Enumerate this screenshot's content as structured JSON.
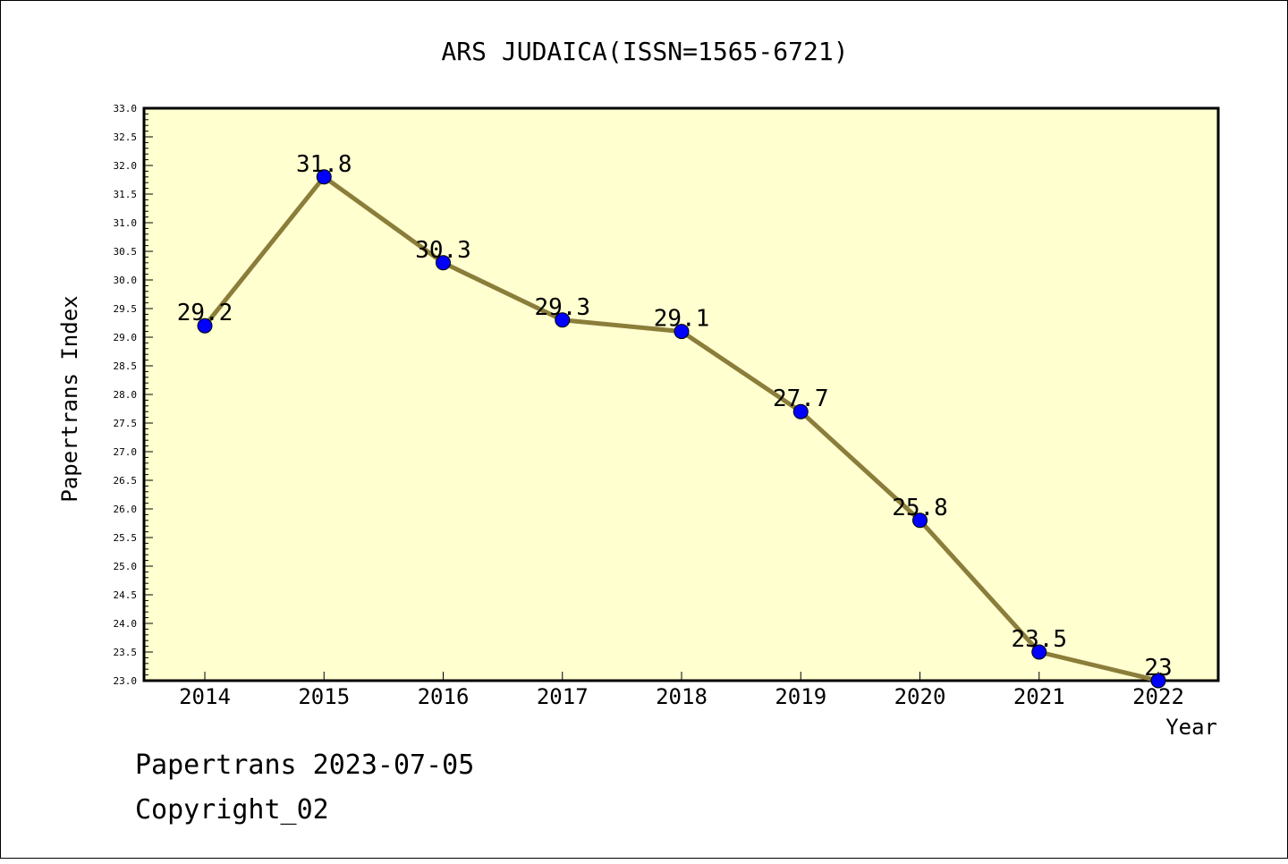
{
  "chart_data": {
    "type": "line",
    "title": "ARS JUDAICA(ISSN=1565-6721)",
    "xlabel": "Year",
    "ylabel": "Papertrans Index",
    "categories": [
      "2014",
      "2015",
      "2016",
      "2017",
      "2018",
      "2019",
      "2020",
      "2021",
      "2022"
    ],
    "values": [
      29.2,
      31.8,
      30.3,
      29.3,
      29.1,
      27.7,
      25.8,
      23.5,
      23
    ],
    "data_labels": [
      "29.2",
      "31.8",
      "30.3",
      "29.3",
      "29.1",
      "27.7",
      "25.8",
      "23.5",
      "23"
    ],
    "ylim": [
      23.0,
      33.0
    ],
    "y_ticks": [
      "23.0",
      "23.5",
      "24.0",
      "24.5",
      "25.0",
      "25.5",
      "26.0",
      "26.5",
      "27.0",
      "27.5",
      "28.0",
      "28.5",
      "29.0",
      "29.5",
      "30.0",
      "30.5",
      "31.0",
      "31.5",
      "32.0",
      "32.5",
      "33.0"
    ],
    "grid": false,
    "colors": {
      "plot_background": "#ffffd0",
      "line": "#8b7d3a",
      "marker": "#0000ff"
    }
  },
  "footer": {
    "line1": "Papertrans 2023-07-05",
    "line2": "Copyright_02"
  }
}
